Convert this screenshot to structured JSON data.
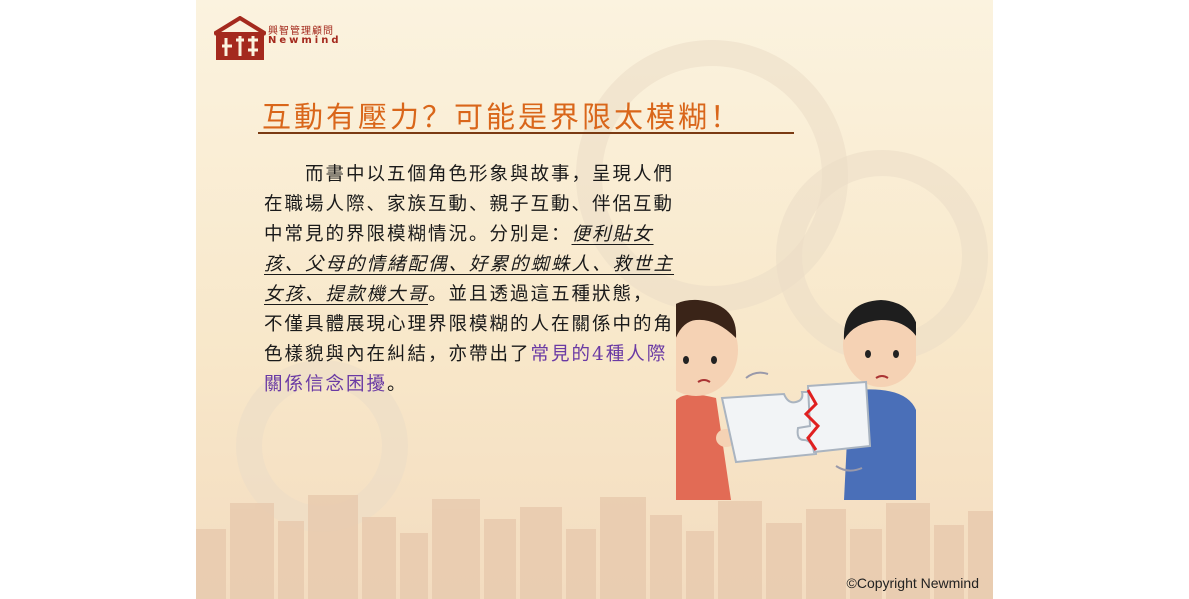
{
  "logo": {
    "name_cn": "興智管理顧問",
    "name_en": "Newmind"
  },
  "title": "互動有壓力？可能是界限太模糊！",
  "body": {
    "part1": "　　而書中以五個角色形象與故事，呈現人們在職場人際、家族互動、親子互動、伴侶互動中常見的界限模糊情況。分別是：",
    "roles": "便利貼女孩、父母的情緒配偶、好累的蜘蛛人、救世主女孩、提款機大哥",
    "part2": "。並且透過這五種狀態，不僅具體展現心理界限模糊的人在關係中的角色樣貌與內在糾結，亦帶出了",
    "highlight": "常見的4種人際關係信念困擾",
    "part3": "。"
  },
  "illustration": {
    "icon": "two-people-holding-broken-puzzle-illustration"
  },
  "copyright": "©Copyright Newmind"
}
